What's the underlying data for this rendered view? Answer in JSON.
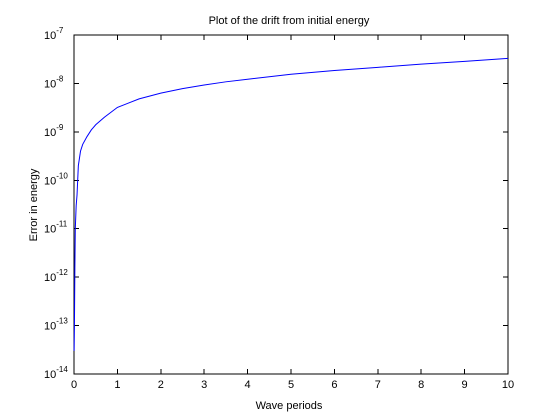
{
  "chart_data": {
    "type": "line",
    "title": "Plot of the drift from initial energy",
    "xlabel": "Wave periods",
    "ylabel": "Error in energy",
    "xlim": [
      0,
      10
    ],
    "ylim": [
      1e-14,
      1e-07
    ],
    "yscale": "log",
    "grid": false,
    "line_color": "#0000ff",
    "xticks": [
      0,
      1,
      2,
      3,
      4,
      5,
      6,
      7,
      8,
      9,
      10
    ],
    "yticks": [
      {
        "base": "10",
        "exp": "-14",
        "value": 1e-14
      },
      {
        "base": "10",
        "exp": "-13",
        "value": 1e-13
      },
      {
        "base": "10",
        "exp": "-12",
        "value": 1e-12
      },
      {
        "base": "10",
        "exp": "-11",
        "value": 1e-11
      },
      {
        "base": "10",
        "exp": "-10",
        "value": 1e-10
      },
      {
        "base": "10",
        "exp": "-9",
        "value": 1e-09
      },
      {
        "base": "10",
        "exp": "-8",
        "value": 1e-08
      },
      {
        "base": "10",
        "exp": "-7",
        "value": 1e-07
      }
    ],
    "series": [
      {
        "x": [
          0.003,
          0.01,
          0.02,
          0.03,
          0.05,
          0.07,
          0.1,
          0.15,
          0.2,
          0.3,
          0.4,
          0.5,
          0.7,
          1,
          1.5,
          2,
          2.5,
          3,
          3.5,
          4,
          5,
          6,
          7,
          8,
          9,
          10
        ],
        "y": [
          3e-14,
          1e-13,
          1.5e-12,
          1e-11,
          3e-11,
          5e-11,
          2e-10,
          4e-10,
          5.5e-10,
          8e-10,
          1.1e-09,
          1.4e-09,
          2e-09,
          3.2e-09,
          4.8e-09,
          6.3e-09,
          7.8e-09,
          9.3e-09,
          1.08e-08,
          1.22e-08,
          1.55e-08,
          1.85e-08,
          2.15e-08,
          2.5e-08,
          2.85e-08,
          3.3e-08
        ]
      }
    ]
  }
}
